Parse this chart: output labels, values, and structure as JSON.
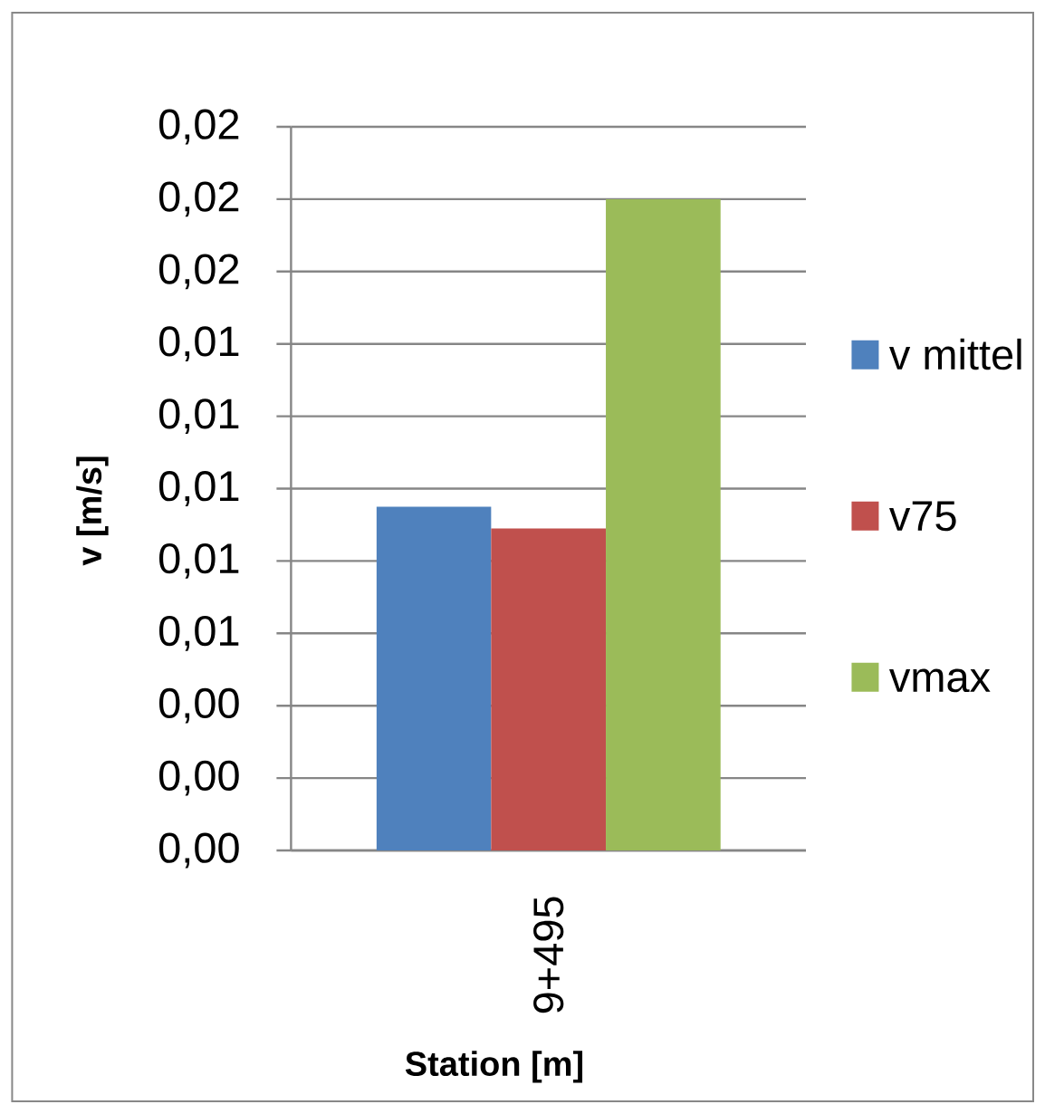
{
  "chart_data": {
    "type": "bar",
    "categories": [
      "9+495"
    ],
    "series": [
      {
        "name": "v mittel",
        "color": "#4f81bd",
        "values": [
          0.0095
        ]
      },
      {
        "name": "v75",
        "color": "#c0504d",
        "values": [
          0.0089
        ]
      },
      {
        "name": "vmax",
        "color": "#9bbb59",
        "values": [
          0.018
        ]
      }
    ],
    "xlabel": "Station [m]",
    "ylabel": "v [m/s]",
    "ylim": [
      0,
      0.02
    ],
    "yticks": [
      {
        "value": 0,
        "label": "0,00"
      },
      {
        "value": 0.002,
        "label": "0,00"
      },
      {
        "value": 0.004,
        "label": "0,00"
      },
      {
        "value": 0.006,
        "label": "0,01"
      },
      {
        "value": 0.008,
        "label": "0,01"
      },
      {
        "value": 0.01,
        "label": "0,01"
      },
      {
        "value": 0.012,
        "label": "0,01"
      },
      {
        "value": 0.014,
        "label": "0,01"
      },
      {
        "value": 0.016,
        "label": "0,02"
      },
      {
        "value": 0.018,
        "label": "0,02"
      },
      {
        "value": 0.02,
        "label": "0,02"
      }
    ],
    "grid": "y",
    "legend": "right"
  }
}
